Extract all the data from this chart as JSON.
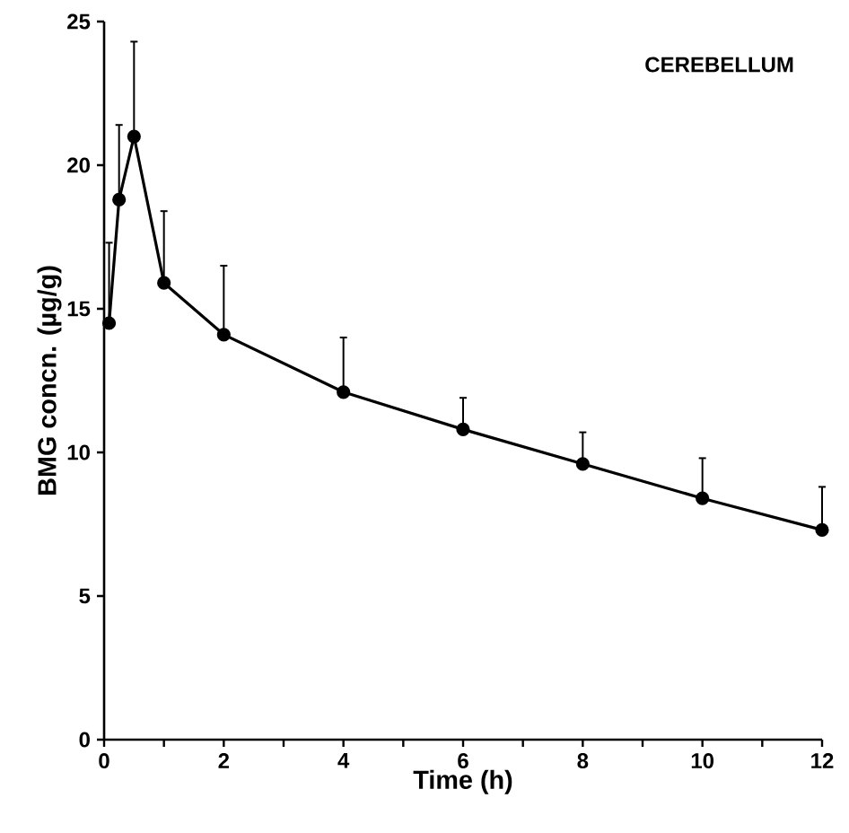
{
  "chart_data": {
    "type": "line",
    "xlabel": "Time (h)",
    "ylabel": "BMG concn. (µg/g)",
    "annotations": [
      "CEREBELLUM"
    ],
    "x": [
      0.083,
      0.25,
      0.5,
      1,
      2,
      4,
      6,
      8,
      10,
      12
    ],
    "series": [
      {
        "color": "#000000",
        "values": [
          14.5,
          18.8,
          21.0,
          15.9,
          14.1,
          12.1,
          10.8,
          9.6,
          8.4,
          7.3
        ],
        "errors": [
          [
            14.5,
            17.3
          ],
          [
            18.8,
            21.4
          ],
          [
            21.0,
            24.3
          ],
          [
            15.9,
            18.4
          ],
          [
            14.1,
            16.5
          ],
          [
            12.1,
            14.0
          ],
          [
            10.8,
            11.9
          ],
          [
            9.6,
            10.7
          ],
          [
            8.4,
            9.8
          ],
          [
            7.3,
            8.8
          ]
        ]
      }
    ],
    "xlim": [
      0,
      12
    ],
    "ylim": [
      0,
      25
    ],
    "xticks": [
      0,
      {
        "value": 1,
        "label": null
      },
      2,
      {
        "value": 3,
        "label": null
      },
      4,
      {
        "value": 5,
        "label": null
      },
      6,
      {
        "value": 7,
        "label": null
      },
      8,
      {
        "value": 9,
        "label": null
      },
      10,
      {
        "value": 11,
        "label": null
      },
      12
    ],
    "yticks": [
      0,
      5,
      10,
      15,
      20,
      25
    ],
    "marker": "circle",
    "line_style": "solid"
  }
}
